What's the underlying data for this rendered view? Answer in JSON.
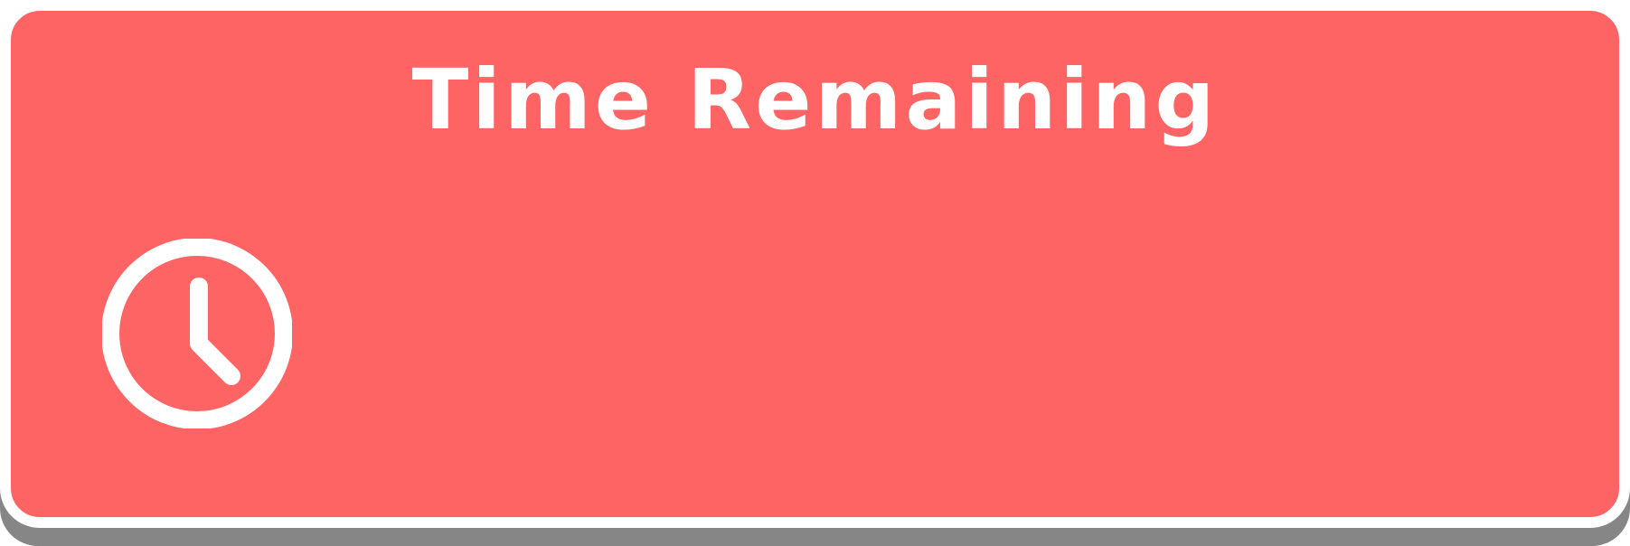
{
  "widget": {
    "title": "Time Remaining",
    "icon": "clock-icon",
    "colors": {
      "card_background": "#ff6464",
      "card_border": "#ffffff",
      "shadow": "#868686",
      "text": "#ffffff"
    }
  }
}
